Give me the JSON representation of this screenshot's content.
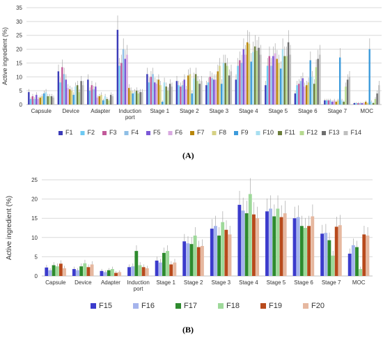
{
  "panels": [
    {
      "label": "(A)"
    },
    {
      "label": "(B)"
    }
  ],
  "chart_data": [
    {
      "type": "bar",
      "ylabel": "Active ingredient (%)",
      "xlabel": "",
      "ylim": [
        0,
        35
      ],
      "yticks": [
        0,
        5,
        10,
        15,
        20,
        25,
        30,
        35
      ],
      "grid": true,
      "legend_position": "bottom",
      "categories": [
        "Capsule",
        "Device",
        "Adapter",
        "Induction port",
        "Stage 1",
        "Stage 2",
        "Stage 3",
        "Stage 4",
        "Stage 5",
        "Stage 6",
        "Stage 7",
        "MOC"
      ],
      "series": [
        {
          "name": "F1",
          "color": "#3b3bb8",
          "values": [
            4.5,
            12.0,
            9.0,
            27.0,
            11.0,
            8.5,
            7.0,
            9.0,
            7.0,
            4.0,
            1.5,
            0.5
          ]
        },
        {
          "name": "F2",
          "color": "#6ec9f2",
          "values": [
            2.0,
            8.0,
            5.0,
            14.0,
            8.0,
            7.0,
            8.0,
            14.0,
            14.0,
            7.0,
            1.5,
            0.5
          ]
        },
        {
          "name": "F3",
          "color": "#c2599a",
          "values": [
            3.0,
            13.5,
            7.0,
            15.0,
            10.0,
            6.5,
            10.0,
            16.0,
            17.5,
            7.5,
            1.5,
            0.5
          ]
        },
        {
          "name": "F4",
          "color": "#8fbfe6",
          "values": [
            2.0,
            11.0,
            5.5,
            20.0,
            11.0,
            7.0,
            9.5,
            15.0,
            14.0,
            8.5,
            1.5,
            0.5
          ]
        },
        {
          "name": "F5",
          "color": "#7b57d6",
          "values": [
            3.5,
            9.0,
            6.5,
            16.5,
            8.0,
            9.0,
            9.0,
            20.0,
            17.5,
            9.5,
            1.0,
            0.5
          ]
        },
        {
          "name": "F6",
          "color": "#d8a8e0",
          "values": [
            2.0,
            6.0,
            2.5,
            18.0,
            7.5,
            5.5,
            9.0,
            18.0,
            18.5,
            6.5,
            1.5,
            0.5
          ]
        },
        {
          "name": "F7",
          "color": "#b8860b",
          "values": [
            2.5,
            5.5,
            3.0,
            6.0,
            9.0,
            10.5,
            12.0,
            22.5,
            16.5,
            7.0,
            1.0,
            1.0
          ]
        },
        {
          "name": "F8",
          "color": "#d6d184",
          "values": [
            3.0,
            5.0,
            3.5,
            5.0,
            7.0,
            11.0,
            14.0,
            22.0,
            15.0,
            8.0,
            1.5,
            0.5
          ]
        },
        {
          "name": "F9",
          "color": "#3d9bdb",
          "values": [
            4.0,
            3.5,
            1.5,
            4.0,
            1.0,
            4.0,
            7.5,
            15.5,
            13.0,
            16.0,
            17.0,
            20.0
          ]
        },
        {
          "name": "F10",
          "color": "#a8dff0",
          "values": [
            4.5,
            6.5,
            3.0,
            4.5,
            8.0,
            9.5,
            15.0,
            19.0,
            20.0,
            10.0,
            1.5,
            1.0
          ]
        },
        {
          "name": "F11",
          "color": "#6b7d3a",
          "values": [
            3.0,
            7.0,
            2.0,
            5.0,
            6.5,
            11.0,
            15.0,
            21.0,
            17.5,
            7.5,
            1.0,
            0.5
          ]
        },
        {
          "name": "F12",
          "color": "#b6d98f",
          "values": [
            3.0,
            4.5,
            1.5,
            4.0,
            5.0,
            8.5,
            14.0,
            19.5,
            17.5,
            13.5,
            6.5,
            2.0
          ]
        },
        {
          "name": "F13",
          "color": "#6e6e6e",
          "values": [
            3.0,
            8.5,
            3.5,
            4.5,
            7.5,
            7.5,
            10.5,
            20.5,
            22.5,
            16.5,
            9.0,
            4.0
          ]
        },
        {
          "name": "F14",
          "color": "#c0c0c0",
          "values": [
            2.5,
            7.0,
            3.0,
            4.5,
            6.5,
            8.5,
            12.0,
            18.0,
            18.0,
            18.0,
            10.0,
            7.0
          ]
        }
      ]
    },
    {
      "type": "bar",
      "ylabel": "Active ingredient (%)",
      "xlabel": "",
      "ylim": [
        0,
        25
      ],
      "yticks": [
        0,
        5,
        10,
        15,
        20,
        25
      ],
      "grid": true,
      "legend_position": "bottom",
      "categories": [
        "Capsule",
        "Device",
        "Adapter",
        "Induction port",
        "Stage 1",
        "Stage 2",
        "Stage 3",
        "Stage 4",
        "Stage 5",
        "Stage 6",
        "Stage 7",
        "MOC"
      ],
      "series": [
        {
          "name": "F15",
          "color": "#3b3bcc",
          "values": [
            2.2,
            1.8,
            1.3,
            2.3,
            4.0,
            9.0,
            12.3,
            18.5,
            16.8,
            15.0,
            11.0,
            5.8
          ]
        },
        {
          "name": "F16",
          "color": "#a5b4ec",
          "values": [
            1.5,
            1.5,
            1.0,
            2.5,
            3.5,
            8.5,
            13.0,
            17.0,
            17.5,
            15.3,
            11.2,
            8.0
          ]
        },
        {
          "name": "F17",
          "color": "#2e8b2e",
          "values": [
            2.8,
            2.5,
            1.5,
            6.5,
            6.0,
            8.3,
            10.5,
            16.3,
            15.5,
            13.0,
            9.3,
            7.5
          ]
        },
        {
          "name": "F18",
          "color": "#9ed99a",
          "values": [
            2.5,
            3.3,
            1.8,
            2.8,
            6.5,
            10.5,
            14.0,
            21.3,
            17.5,
            12.5,
            5.3,
            1.8
          ]
        },
        {
          "name": "F19",
          "color": "#b84a1c",
          "values": [
            3.2,
            2.3,
            0.8,
            2.3,
            3.0,
            7.5,
            12.0,
            16.0,
            15.3,
            13.0,
            12.8,
            10.8
          ]
        },
        {
          "name": "F20",
          "color": "#e6b8a0",
          "values": [
            2.0,
            3.0,
            1.0,
            2.0,
            3.5,
            7.8,
            10.8,
            15.0,
            16.3,
            15.5,
            13.2,
            10.5
          ]
        }
      ]
    }
  ]
}
